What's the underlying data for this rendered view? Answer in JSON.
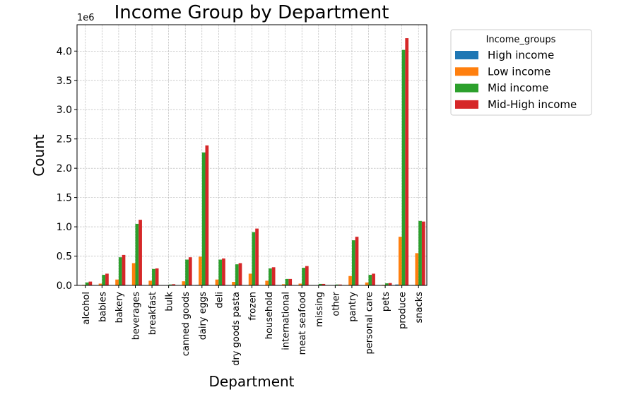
{
  "chart_data": {
    "type": "bar",
    "title": "Income Group by Department",
    "xlabel": "Department",
    "ylabel": "Count",
    "y_multiplier_label": "1e6",
    "ylim": [
      0,
      4.45
    ],
    "yticks": [
      "0.0",
      "0.5",
      "1.0",
      "1.5",
      "2.0",
      "2.5",
      "3.0",
      "3.5",
      "4.0"
    ],
    "grid": true,
    "legend": {
      "title": "Income_groups",
      "placement": "outside-top-right"
    },
    "categories": [
      "alcohol",
      "babies",
      "bakery",
      "beverages",
      "breakfast",
      "bulk",
      "canned goods",
      "dairy eggs",
      "deli",
      "dry goods pasta",
      "frozen",
      "household",
      "international",
      "meat seafood",
      "missing",
      "other",
      "pantry",
      "personal care",
      "pets",
      "produce",
      "snacks"
    ],
    "series": [
      {
        "name": "High income",
        "color": "#1f77b4",
        "values": [
          0.001,
          0.001,
          0.002,
          0.005,
          0.001,
          0.0,
          0.002,
          0.008,
          0.002,
          0.002,
          0.004,
          0.002,
          0.001,
          0.001,
          0.0,
          0.0,
          0.003,
          0.001,
          0.0,
          0.015,
          0.007
        ]
      },
      {
        "name": "Low income",
        "color": "#ff7f0e",
        "values": [
          0.01,
          0.03,
          0.1,
          0.38,
          0.08,
          0.004,
          0.07,
          0.49,
          0.1,
          0.06,
          0.2,
          0.08,
          0.02,
          0.03,
          0.004,
          0.004,
          0.16,
          0.05,
          0.01,
          0.83,
          0.55
        ]
      },
      {
        "name": "Mid income",
        "color": "#2ca02c",
        "values": [
          0.05,
          0.18,
          0.48,
          1.05,
          0.28,
          0.015,
          0.44,
          2.27,
          0.44,
          0.36,
          0.91,
          0.29,
          0.11,
          0.3,
          0.025,
          0.015,
          0.77,
          0.18,
          0.035,
          4.02,
          1.1
        ]
      },
      {
        "name": "Mid-High income",
        "color": "#d62728",
        "values": [
          0.065,
          0.2,
          0.52,
          1.12,
          0.29,
          0.02,
          0.48,
          2.39,
          0.46,
          0.38,
          0.97,
          0.31,
          0.11,
          0.33,
          0.025,
          0.015,
          0.83,
          0.2,
          0.04,
          4.22,
          1.09
        ]
      }
    ]
  }
}
